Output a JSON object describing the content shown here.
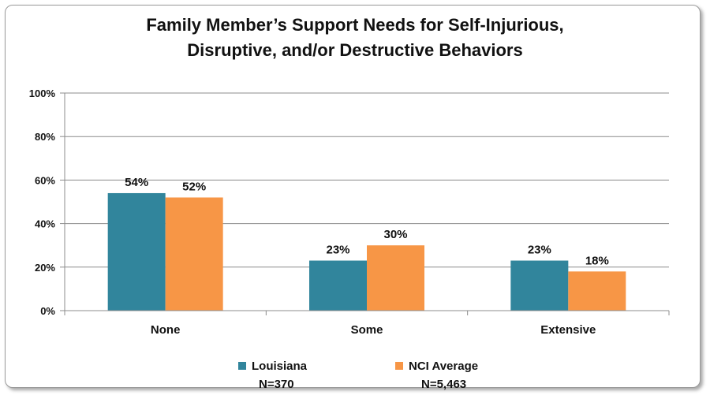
{
  "chart_data": {
    "type": "bar",
    "title_line1": "Family Member’s Support Needs for Self-Injurious,",
    "title_line2": "Disruptive, and/or Destructive Behaviors",
    "categories": [
      "None",
      "Some",
      "Extensive"
    ],
    "series": [
      {
        "name": "Louisiana",
        "n_label": "N=370",
        "values": [
          54,
          23,
          23
        ],
        "labels": [
          "54%",
          "23%",
          "23%"
        ],
        "color": "#31859c"
      },
      {
        "name": "NCI Average",
        "n_label": "N=5,463",
        "values": [
          52,
          30,
          18
        ],
        "labels": [
          "52%",
          "30%",
          "18%"
        ],
        "color": "#f79646"
      }
    ],
    "ylim": [
      0,
      100
    ],
    "yticks": [
      "0%",
      "20%",
      "40%",
      "60%",
      "80%",
      "100%"
    ],
    "grid": true,
    "legend_position": "bottom"
  }
}
